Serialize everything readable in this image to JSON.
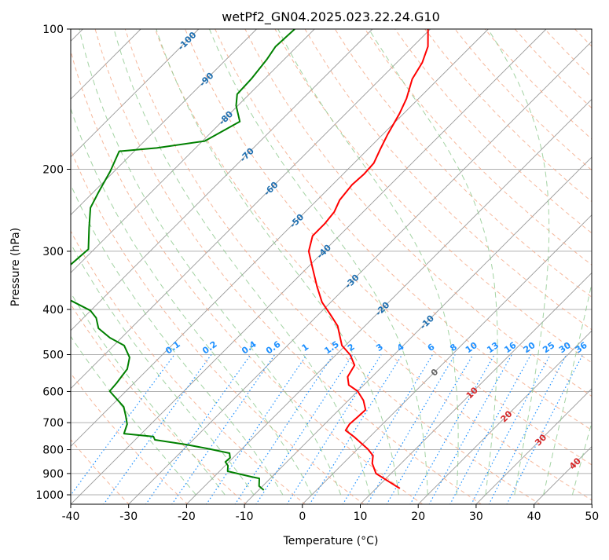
{
  "chart_data": {
    "type": "line",
    "subtype": "skew-t log-p",
    "title": "wetPf2_GN04.2025.023.22.24.G10",
    "xlabel": "Temperature (°C)",
    "ylabel": "Pressure (hPa)",
    "xlim": [
      -40,
      50
    ],
    "ylim": [
      1050,
      100
    ],
    "x_ticks": [
      -40,
      -30,
      -20,
      -10,
      0,
      10,
      20,
      30,
      40,
      50
    ],
    "y_ticks": [
      100,
      200,
      300,
      400,
      500,
      600,
      700,
      800,
      900,
      1000
    ],
    "grid": true,
    "series": [
      {
        "name": "Temperature",
        "color": "#ff0000",
        "pressure": [
          969,
          900,
          856,
          824,
          798,
          750,
          727,
          705,
          678,
          657,
          627,
          599,
          581,
          558,
          527,
          501,
          478,
          434,
          409,
          386,
          357,
          324,
          300,
          278,
          262,
          247,
          233,
          216,
          205,
          194,
          181,
          168,
          152,
          141,
          128,
          118,
          109,
          100
        ],
        "temperature": [
          14.1,
          7.4,
          5.0,
          3.8,
          1.8,
          -2.8,
          -5.3,
          -5.7,
          -5.5,
          -5.4,
          -7.4,
          -10.0,
          -12.6,
          -14.2,
          -15.0,
          -17.5,
          -20.6,
          -24.7,
          -28.1,
          -31.5,
          -35.1,
          -39.3,
          -42.6,
          -44.6,
          -44.6,
          -45.0,
          -46.1,
          -46.6,
          -46.4,
          -46.6,
          -47.9,
          -49.2,
          -50.7,
          -52.1,
          -54.5,
          -55.6,
          -57.4,
          -60.4
        ]
      },
      {
        "name": "Dewpoint",
        "color": "#008000",
        "pressure": [
          977,
          958,
          922,
          915,
          890,
          866,
          850,
          833,
          814,
          795,
          780,
          762,
          750,
          739,
          705,
          678,
          647,
          599,
          576,
          537,
          507,
          478,
          460,
          439,
          417,
          402,
          383,
          351,
          320,
          297,
          267,
          242,
          224,
          202,
          183,
          180,
          174,
          158,
          146,
          138,
          128,
          116,
          109,
          100
        ],
        "temperature": [
          -9.1,
          -10.6,
          -11.9,
          -13.5,
          -18.6,
          -19.5,
          -20.6,
          -20.5,
          -21.4,
          -26.2,
          -30.4,
          -36.6,
          -37.4,
          -43.0,
          -44.1,
          -45.7,
          -47.7,
          -52.8,
          -53.0,
          -53.6,
          -55.2,
          -58.2,
          -62.0,
          -65.6,
          -67.8,
          -70.1,
          -75.1,
          -85.0,
          -81.4,
          -81.0,
          -84.6,
          -87.8,
          -89.1,
          -90.7,
          -92.6,
          -86.7,
          -79.6,
          -76.9,
          -80.3,
          -82.1,
          -82.3,
          -83.0,
          -83.7,
          -83.4
        ]
      }
    ],
    "isotherm_labels": [
      -100,
      -90,
      -80,
      -70,
      -60,
      -50,
      -40,
      -30,
      -20,
      -10,
      0,
      10,
      20,
      30,
      40
    ],
    "isotherm_label_colors": {
      "negative": "#1f6fb0",
      "zero": "#666666",
      "positive": "#d62728"
    },
    "mixing_ratio_labels": [
      "0.1",
      "0.2",
      "0.4",
      "0.6",
      "1",
      "1.5",
      "2",
      "3",
      "4",
      "6",
      "8",
      "10",
      "13",
      "16",
      "20",
      "25",
      "30",
      "36"
    ],
    "mixing_ratio_color": "#1e90ff",
    "dry_adiabat_color": "#f4a582",
    "moist_adiabat_color": "#8cc88c",
    "isotherm_color": "#999999"
  }
}
